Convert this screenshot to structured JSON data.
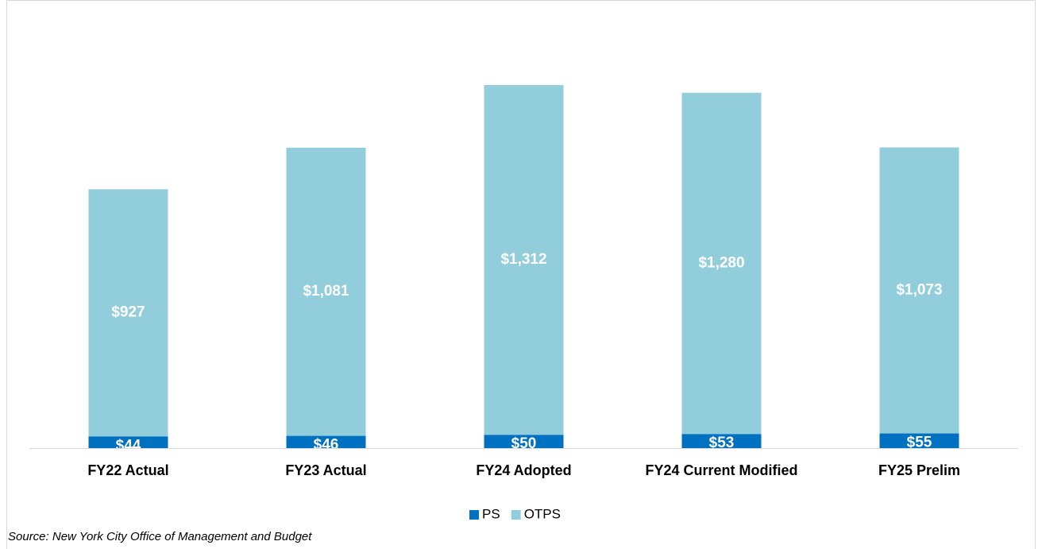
{
  "chart_data": {
    "type": "stacked_bar",
    "categories": [
      "FY22 Actual",
      "FY23 Actual",
      "FY24 Adopted",
      "FY24 Current Modified",
      "FY25 Prelim"
    ],
    "series": [
      {
        "name": "PS",
        "color": "#0070c0",
        "values": [
          44,
          46,
          50,
          53,
          55
        ],
        "value_labels": [
          "$44",
          "$46",
          "$50",
          "$53",
          "$55"
        ]
      },
      {
        "name": "OTPS",
        "color": "#92cddc",
        "values": [
          927,
          1081,
          1312,
          1280,
          1073
        ],
        "value_labels": [
          "$927",
          "$1,081",
          "$1,312",
          "$1,280",
          "$1,073"
        ]
      }
    ],
    "legend": "bottom",
    "source": "Source: New York City Office of Management and Budget"
  }
}
